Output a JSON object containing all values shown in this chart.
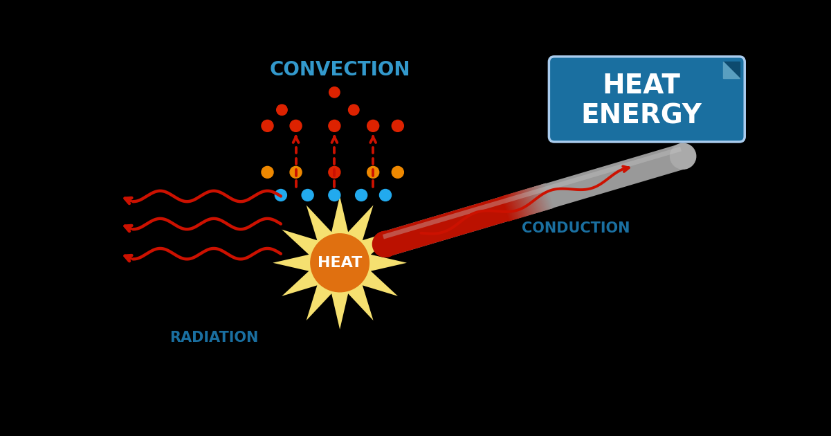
{
  "background_color": "#000000",
  "convection_label": "CONVECTION",
  "convection_label_color": "#3399cc",
  "heat_label": "HEAT",
  "heat_label_color": "#ffffff",
  "conduction_label": "CONDUCTION",
  "conduction_label_color": "#1a6fa0",
  "radiation_label": "RADIATION",
  "radiation_label_color": "#1a6fa0",
  "heat_energy_label": [
    "HEAT",
    "ENERGY"
  ],
  "heat_energy_color": "#ffffff",
  "box_fill_color": "#1a6fa0",
  "box_edge_color": "#3399cc",
  "arrow_color": "#cc1100",
  "sun_outer_color": "#f5e070",
  "sun_inner_color": "#e07010",
  "dot_red": "#dd2200",
  "dot_orange": "#ee8800",
  "dot_blue": "#22aaee",
  "wave_color": "#cc1100",
  "rod_gray": "#aaaaaa",
  "rod_red": "#bb1100"
}
